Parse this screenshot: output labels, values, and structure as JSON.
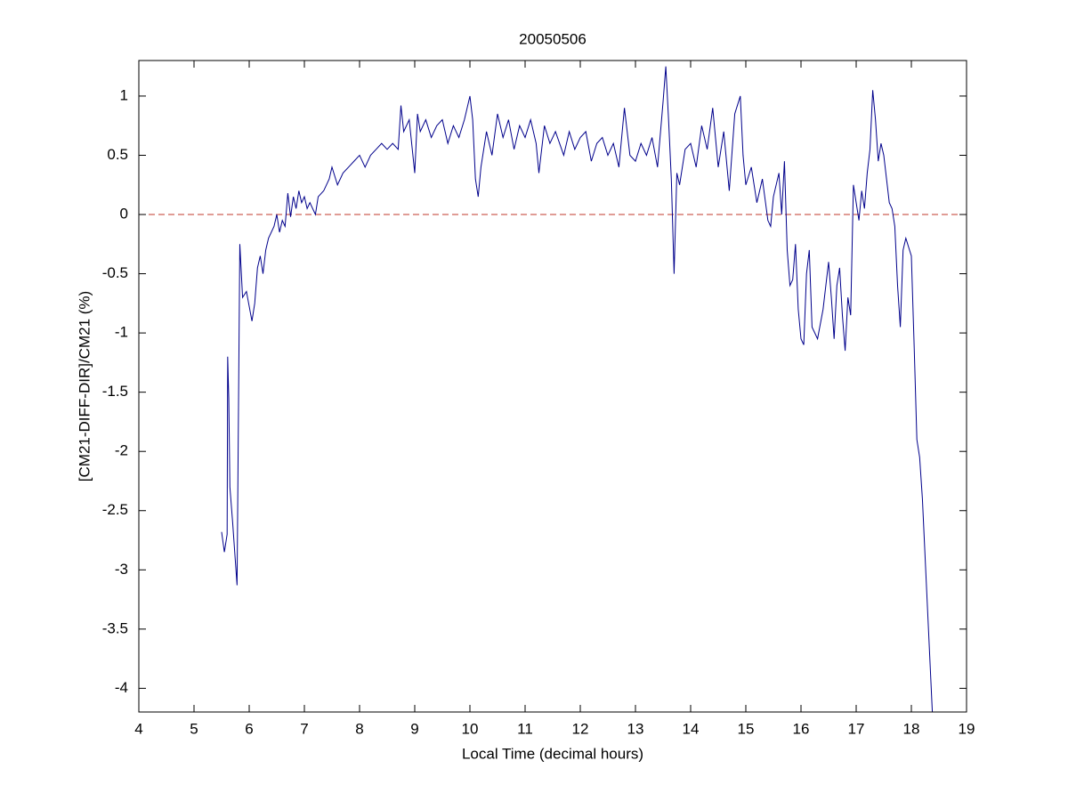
{
  "chart_data": {
    "type": "line",
    "title": "20050506",
    "x_label": "Local Time (decimal hours)",
    "y_label": "[CM21-DIFF-DIR]/CM21 (%)",
    "xlim": [
      4,
      19
    ],
    "ylim": [
      -4.2,
      1.3
    ],
    "xticks": [
      4,
      5,
      6,
      7,
      8,
      9,
      10,
      11,
      12,
      13,
      14,
      15,
      16,
      17,
      18,
      19
    ],
    "yticks": [
      -4,
      -3.5,
      -3,
      -2.5,
      -2,
      -1.5,
      -1,
      -0.5,
      0,
      0.5,
      1
    ],
    "grid": false,
    "reference_line": {
      "value": 0,
      "color": "#c0392b",
      "dashed": true
    },
    "x": [
      5.5,
      5.55,
      5.6,
      5.61,
      5.63,
      5.65,
      5.7,
      5.78,
      5.83,
      5.88,
      5.95,
      6.05,
      6.1,
      6.15,
      6.2,
      6.25,
      6.3,
      6.35,
      6.45,
      6.5,
      6.55,
      6.6,
      6.65,
      6.7,
      6.75,
      6.8,
      6.85,
      6.9,
      6.95,
      7.0,
      7.05,
      7.1,
      7.2,
      7.25,
      7.35,
      7.45,
      7.5,
      7.6,
      7.7,
      7.8,
      7.9,
      8.0,
      8.1,
      8.2,
      8.3,
      8.4,
      8.5,
      8.6,
      8.7,
      8.75,
      8.8,
      8.9,
      9.0,
      9.05,
      9.1,
      9.2,
      9.3,
      9.4,
      9.5,
      9.6,
      9.7,
      9.8,
      9.9,
      10.0,
      10.05,
      10.1,
      10.15,
      10.2,
      10.3,
      10.4,
      10.5,
      10.6,
      10.7,
      10.8,
      10.9,
      11.0,
      11.1,
      11.2,
      11.25,
      11.35,
      11.45,
      11.55,
      11.7,
      11.8,
      11.9,
      12.0,
      12.1,
      12.2,
      12.3,
      12.4,
      12.5,
      12.6,
      12.7,
      12.8,
      12.9,
      13.0,
      13.1,
      13.2,
      13.3,
      13.4,
      13.5,
      13.55,
      13.6,
      13.65,
      13.7,
      13.75,
      13.8,
      13.9,
      14.0,
      14.1,
      14.2,
      14.3,
      14.4,
      14.5,
      14.6,
      14.7,
      14.8,
      14.9,
      14.95,
      15.0,
      15.1,
      15.2,
      15.3,
      15.4,
      15.45,
      15.5,
      15.6,
      15.65,
      15.7,
      15.75,
      15.8,
      15.85,
      15.9,
      15.95,
      16.0,
      16.05,
      16.1,
      16.15,
      16.2,
      16.3,
      16.4,
      16.5,
      16.55,
      16.6,
      16.65,
      16.7,
      16.75,
      16.8,
      16.85,
      16.9,
      16.95,
      17.0,
      17.05,
      17.1,
      17.15,
      17.2,
      17.25,
      17.3,
      17.35,
      17.4,
      17.45,
      17.5,
      17.55,
      17.6,
      17.65,
      17.7,
      17.75,
      17.8,
      17.85,
      17.9,
      18.0,
      18.05,
      18.1,
      18.15,
      18.2,
      18.3,
      18.38
    ],
    "series": [
      {
        "color": "#00008b",
        "values": [
          -2.68,
          -2.85,
          -2.7,
          -1.2,
          -1.55,
          -2.3,
          -2.6,
          -3.13,
          -0.25,
          -0.7,
          -0.65,
          -0.9,
          -0.75,
          -0.45,
          -0.35,
          -0.5,
          -0.3,
          -0.2,
          -0.1,
          0.0,
          -0.15,
          -0.05,
          -0.1,
          0.18,
          -0.02,
          0.15,
          0.05,
          0.2,
          0.1,
          0.15,
          0.05,
          0.1,
          0.0,
          0.15,
          0.2,
          0.3,
          0.4,
          0.25,
          0.35,
          0.4,
          0.45,
          0.5,
          0.4,
          0.5,
          0.55,
          0.6,
          0.55,
          0.6,
          0.55,
          0.92,
          0.7,
          0.8,
          0.35,
          0.85,
          0.7,
          0.8,
          0.65,
          0.75,
          0.8,
          0.6,
          0.75,
          0.65,
          0.8,
          1.0,
          0.8,
          0.3,
          0.15,
          0.4,
          0.7,
          0.5,
          0.85,
          0.65,
          0.8,
          0.55,
          0.75,
          0.65,
          0.8,
          0.6,
          0.35,
          0.75,
          0.6,
          0.7,
          0.5,
          0.7,
          0.55,
          0.65,
          0.7,
          0.45,
          0.6,
          0.65,
          0.5,
          0.6,
          0.4,
          0.9,
          0.5,
          0.45,
          0.6,
          0.5,
          0.65,
          0.4,
          0.95,
          1.25,
          0.8,
          0.3,
          -0.5,
          0.35,
          0.25,
          0.55,
          0.6,
          0.4,
          0.75,
          0.55,
          0.9,
          0.4,
          0.7,
          0.2,
          0.85,
          1.0,
          0.5,
          0.25,
          0.4,
          0.1,
          0.3,
          -0.05,
          -0.1,
          0.15,
          0.35,
          0.0,
          0.45,
          -0.3,
          -0.6,
          -0.55,
          -0.25,
          -0.8,
          -1.05,
          -1.1,
          -0.5,
          -0.3,
          -0.95,
          -1.05,
          -0.8,
          -0.4,
          -0.7,
          -1.05,
          -0.6,
          -0.45,
          -0.85,
          -1.15,
          -0.7,
          -0.85,
          0.25,
          0.1,
          -0.05,
          0.2,
          0.05,
          0.35,
          0.55,
          1.05,
          0.8,
          0.45,
          0.6,
          0.5,
          0.3,
          0.1,
          0.05,
          -0.1,
          -0.6,
          -0.95,
          -0.3,
          -0.2,
          -0.35,
          -1.1,
          -1.9,
          -2.05,
          -2.4,
          -3.4,
          -4.2
        ]
      }
    ]
  }
}
